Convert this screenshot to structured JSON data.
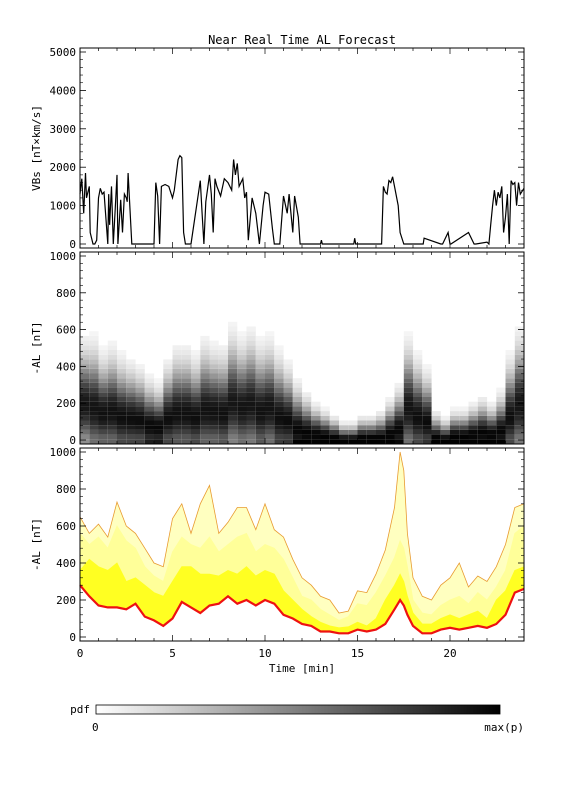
{
  "figure": {
    "title": "Near Real Time AL Forecast",
    "x_label": "Time [min]",
    "x_ticks": [
      "0",
      "5",
      "10",
      "15",
      "20"
    ],
    "colorbar": {
      "label": "pdf",
      "min_label": "0",
      "max_label": "max(p)"
    }
  },
  "chart_data": [
    {
      "type": "line",
      "ylabel": "VBs [nT×km/s]",
      "ylim": [
        0,
        5000
      ],
      "yticks": [
        "0",
        "1000",
        "2000",
        "3000",
        "4000",
        "5000"
      ],
      "xlim": [
        0,
        24
      ],
      "series": [
        {
          "color": "#000000",
          "x": [
            0,
            0.1,
            0.2,
            0.3,
            0.35,
            0.5,
            0.55,
            0.7,
            0.8,
            0.9,
            1.0,
            1.1,
            1.2,
            1.3,
            1.5,
            1.55,
            1.6,
            1.7,
            1.8,
            1.9,
            2.0,
            2.05,
            2.2,
            2.3,
            2.4,
            2.5,
            2.55,
            2.6,
            2.8,
            2.9,
            3.0,
            3.05,
            3.2,
            4.0,
            4.1,
            4.2,
            4.3,
            4.4,
            4.6,
            4.8,
            5.0,
            5.1,
            5.3,
            5.4,
            5.5,
            5.6,
            5.7,
            5.75,
            6.0,
            6.5,
            6.6,
            6.7,
            6.8,
            7.0,
            7.1,
            7.2,
            7.3,
            7.4,
            7.6,
            7.8,
            8.0,
            8.2,
            8.3,
            8.4,
            8.5,
            8.6,
            8.8,
            8.9,
            9.0,
            9.1,
            9.3,
            9.5,
            9.7,
            9.9,
            10.0,
            10.2,
            10.4,
            10.5,
            10.6,
            10.7,
            10.8,
            11.0,
            11.2,
            11.3,
            11.5,
            11.6,
            11.8,
            11.9,
            12.0,
            12.5,
            13.0,
            13.05,
            13.1,
            14.0,
            14.1,
            14.2,
            14.3,
            14.8,
            14.85,
            14.9,
            15.0,
            15.5,
            15.6,
            15.7,
            15.8,
            15.9,
            16.0,
            16.2,
            16.3,
            16.4,
            16.5,
            16.6,
            16.7,
            16.8,
            16.9,
            17.0,
            17.2,
            17.3,
            17.5,
            18.0,
            18.5,
            18.55,
            18.6,
            19.5,
            19.55,
            19.6,
            19.9,
            20.0,
            20.05,
            21.0,
            21.3,
            21.35,
            21.4,
            22.0,
            22.1,
            22.2,
            22.3,
            22.4,
            22.5,
            22.6,
            22.7,
            22.8,
            22.9,
            23.0,
            23.1,
            23.2,
            23.3,
            23.4,
            23.5,
            23.6,
            23.7,
            23.8,
            24.0
          ],
          "y": [
            1300,
            1700,
            800,
            1850,
            1200,
            1500,
            300,
            0,
            0,
            100,
            1200,
            1450,
            1300,
            1350,
            0,
            1300,
            500,
            1500,
            0,
            900,
            1800,
            0,
            1150,
            300,
            1300,
            1200,
            1100,
            1850,
            0,
            0,
            0,
            0,
            0,
            0,
            1600,
            1250,
            0,
            1500,
            1550,
            1500,
            1200,
            1400,
            2200,
            2300,
            2250,
            300,
            0,
            0,
            0,
            1650,
            800,
            0,
            1100,
            1800,
            1300,
            300,
            1700,
            1500,
            1250,
            1700,
            1600,
            1400,
            2200,
            1800,
            2100,
            1500,
            1700,
            1200,
            1350,
            100,
            1200,
            800,
            0,
            1000,
            1350,
            1300,
            400,
            0,
            0,
            0,
            0,
            1250,
            800,
            1300,
            300,
            1250,
            700,
            0,
            0,
            0,
            0,
            100,
            0,
            0,
            0,
            0,
            0,
            0,
            150,
            0,
            0,
            0,
            0,
            0,
            0,
            0,
            0,
            0,
            0,
            1500,
            1350,
            1300,
            1650,
            1600,
            1750,
            1500,
            1000,
            300,
            0,
            0,
            0,
            0,
            150,
            0,
            0,
            0,
            300,
            0,
            0,
            300,
            0,
            0,
            0,
            50,
            0,
            500,
            1000,
            1400,
            1000,
            1350,
            1200,
            1500,
            300,
            700,
            1300,
            0,
            1650,
            1550,
            1600,
            1000,
            1600,
            1300,
            1450
          ]
        }
      ]
    },
    {
      "type": "heatmap",
      "ylabel": "-AL [nT]",
      "ylim": [
        0,
        1000
      ],
      "yticks": [
        "0",
        "200",
        "400",
        "600",
        "800",
        "1000"
      ],
      "xlim": [
        0,
        24
      ],
      "x_centers": [
        0.25,
        0.75,
        1.25,
        1.75,
        2.25,
        2.75,
        3.25,
        3.75,
        4.25,
        4.75,
        5.25,
        5.75,
        6.25,
        6.75,
        7.25,
        7.75,
        8.25,
        8.75,
        9.25,
        9.75,
        10.25,
        10.75,
        11.25,
        11.75,
        12.25,
        12.75,
        13.25,
        13.75,
        14.25,
        14.75,
        15.25,
        15.75,
        16.25,
        16.75,
        17.25,
        17.75,
        18.25,
        18.75,
        19.25,
        19.75,
        20.25,
        20.75,
        21.25,
        21.75,
        22.25,
        22.75,
        23.25,
        23.75
      ],
      "mode_al": [
        220,
        200,
        170,
        180,
        150,
        140,
        130,
        100,
        90,
        140,
        170,
        170,
        150,
        190,
        180,
        170,
        230,
        200,
        220,
        180,
        200,
        150,
        130,
        80,
        60,
        50,
        40,
        30,
        20,
        20,
        30,
        30,
        30,
        50,
        80,
        200,
        150,
        120,
        30,
        20,
        40,
        40,
        50,
        60,
        50,
        70,
        150,
        220
      ],
      "spread_al": [
        150,
        160,
        140,
        150,
        140,
        130,
        120,
        110,
        100,
        130,
        150,
        150,
        140,
        160,
        150,
        150,
        170,
        160,
        170,
        160,
        160,
        150,
        130,
        110,
        90,
        70,
        60,
        50,
        40,
        40,
        50,
        50,
        60,
        80,
        100,
        160,
        140,
        120,
        60,
        50,
        60,
        60,
        70,
        80,
        70,
        90,
        140,
        170
      ]
    },
    {
      "type": "area",
      "ylabel": "-AL [nT]",
      "ylim": [
        0,
        1000
      ],
      "yticks": [
        "0",
        "200",
        "400",
        "600",
        "800",
        "1000"
      ],
      "xlim": [
        0,
        24
      ],
      "x": [
        0,
        0.5,
        1,
        1.5,
        2,
        2.5,
        3,
        3.5,
        4,
        4.5,
        5,
        5.5,
        6,
        6.5,
        7,
        7.5,
        8,
        8.5,
        9,
        9.5,
        10,
        10.5,
        11,
        11.5,
        12,
        12.5,
        13,
        13.5,
        14,
        14.5,
        15,
        15.5,
        16,
        16.5,
        17,
        17.3,
        17.5,
        17.7,
        18,
        18.5,
        19,
        19.5,
        20,
        20.5,
        21,
        21.5,
        22,
        22.5,
        23,
        23.5,
        24
      ],
      "series": [
        {
          "color": "#ee1111",
          "values": [
            280,
            220,
            170,
            160,
            160,
            150,
            180,
            110,
            90,
            60,
            100,
            190,
            160,
            130,
            170,
            180,
            220,
            180,
            200,
            170,
            200,
            180,
            120,
            100,
            70,
            60,
            30,
            30,
            20,
            20,
            40,
            30,
            40,
            70,
            150,
            200,
            170,
            120,
            60,
            20,
            20,
            40,
            50,
            40,
            50,
            60,
            50,
            70,
            120,
            240,
            260
          ]
        },
        {
          "color": "#ffff22",
          "values": [
            360,
            420,
            380,
            360,
            400,
            300,
            320,
            280,
            240,
            220,
            300,
            380,
            380,
            340,
            340,
            330,
            360,
            340,
            380,
            330,
            360,
            340,
            250,
            200,
            150,
            110,
            80,
            60,
            50,
            55,
            80,
            60,
            100,
            200,
            280,
            340,
            300,
            220,
            130,
            70,
            70,
            100,
            120,
            100,
            120,
            140,
            100,
            200,
            250,
            360,
            380
          ]
        },
        {
          "color": "#ffff99",
          "values": [
            560,
            500,
            540,
            480,
            600,
            520,
            480,
            380,
            330,
            300,
            460,
            540,
            500,
            480,
            540,
            460,
            500,
            540,
            560,
            460,
            500,
            480,
            420,
            320,
            220,
            200,
            150,
            120,
            90,
            110,
            180,
            170,
            240,
            330,
            430,
            520,
            480,
            380,
            200,
            130,
            120,
            170,
            200,
            220,
            180,
            240,
            200,
            270,
            360,
            560,
            600
          ]
        },
        {
          "color": "#e89a30",
          "values": [
            650,
            560,
            610,
            540,
            730,
            600,
            560,
            480,
            400,
            380,
            640,
            720,
            560,
            720,
            820,
            560,
            620,
            700,
            700,
            580,
            720,
            580,
            540,
            420,
            320,
            280,
            220,
            200,
            130,
            140,
            250,
            240,
            340,
            470,
            700,
            1000,
            900,
            560,
            320,
            220,
            200,
            280,
            320,
            400,
            270,
            330,
            300,
            380,
            500,
            700,
            720
          ]
        }
      ]
    }
  ]
}
